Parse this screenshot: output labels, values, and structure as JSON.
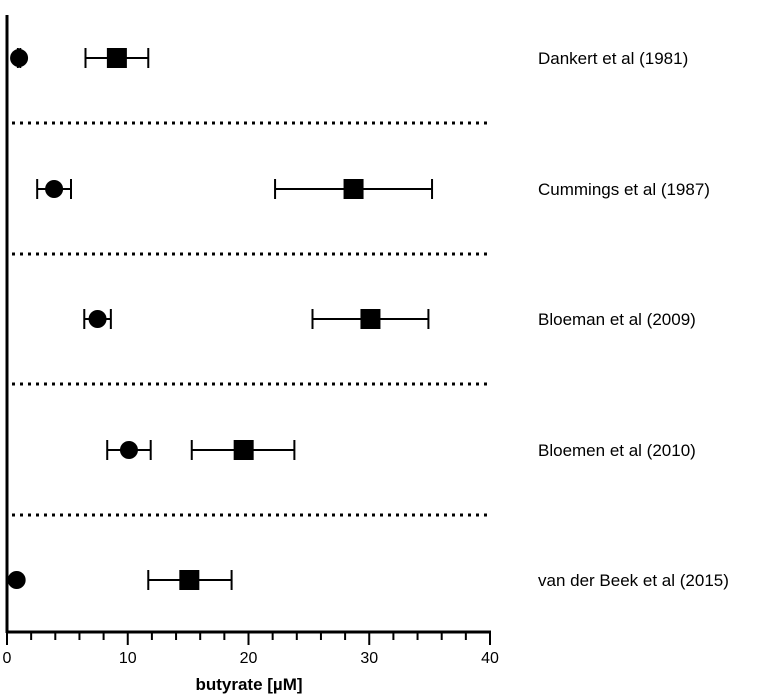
{
  "chart_data": {
    "type": "scatter",
    "title": "",
    "xlabel": "butyrate [µM]",
    "ylabel": "",
    "xlim": [
      0,
      40
    ],
    "x_ticks": [
      0,
      10,
      20,
      30,
      40
    ],
    "x_tick_labels": [
      "0",
      "10",
      "20",
      "30",
      "40"
    ],
    "grid": false,
    "row_separators": "dotted",
    "categories": [
      "Dankert et al (1981)",
      "Cummings et al (1987)",
      "Bloeman et al (2009)",
      "Bloemen et al (2010)",
      "van der Beek et al (2015)"
    ],
    "series": [
      {
        "marker": "circle",
        "values": [
          1.0,
          3.9,
          7.5,
          10.1,
          0.8
        ],
        "err_low": [
          0.9,
          2.5,
          6.4,
          8.3,
          null
        ],
        "err_high": [
          1.1,
          5.3,
          8.6,
          11.9,
          null
        ]
      },
      {
        "marker": "square",
        "values": [
          9.1,
          28.7,
          30.1,
          19.6,
          15.1
        ],
        "err_low": [
          6.5,
          22.2,
          25.3,
          15.3,
          11.7
        ],
        "err_high": [
          11.7,
          35.2,
          34.9,
          23.8,
          18.6
        ]
      }
    ]
  }
}
